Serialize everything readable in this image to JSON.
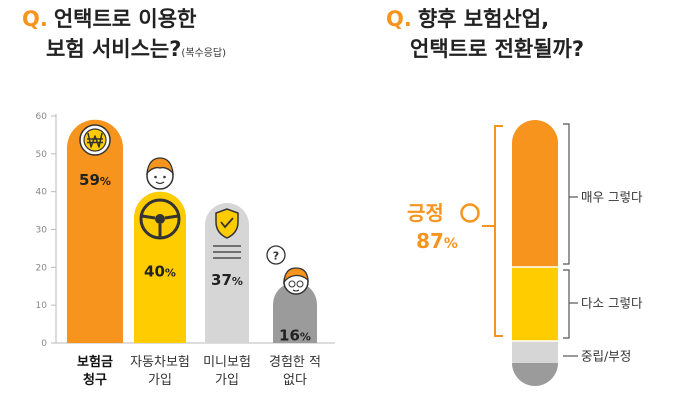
{
  "q1": {
    "mark": "Q.",
    "line1": "언택트로 이용한",
    "line2": "보험 서비스는?",
    "note": "(복수응답)"
  },
  "q2": {
    "mark": "Q.",
    "line1": "향후 보험산업,",
    "line2": "언택트로 전환될까?"
  },
  "chart_data": [
    {
      "type": "bar",
      "categories": [
        [
          "보험금",
          "청구"
        ],
        [
          "자동차보험",
          "가입"
        ],
        [
          "미니보험",
          "가입"
        ],
        [
          "경험한 적",
          "없다"
        ]
      ],
      "values": [
        59,
        40,
        37,
        16
      ],
      "value_suffix": "%",
      "ylim": [
        0,
        60
      ],
      "yticks": [
        0,
        10,
        20,
        30,
        40,
        50,
        60
      ],
      "colors": [
        "#f7941d",
        "#ffcc00",
        "#d6d6d6",
        "#9b9b9b"
      ],
      "highlight_category": 0,
      "icons": [
        "won-coin-icon",
        "steering-wheel-person-icon",
        "shield-document-icon",
        "question-person-icon"
      ]
    },
    {
      "type": "stacked-bar",
      "segments": [
        {
          "name": "매우 그렇다",
          "color": "#f7941d"
        },
        {
          "name": "다소 그렇다",
          "color": "#ffcc00"
        },
        {
          "name": "중립/부정",
          "color": "#d6d6d6"
        }
      ],
      "positive_label": "긍정",
      "positive_value": 87,
      "value_suffix": "%"
    }
  ]
}
